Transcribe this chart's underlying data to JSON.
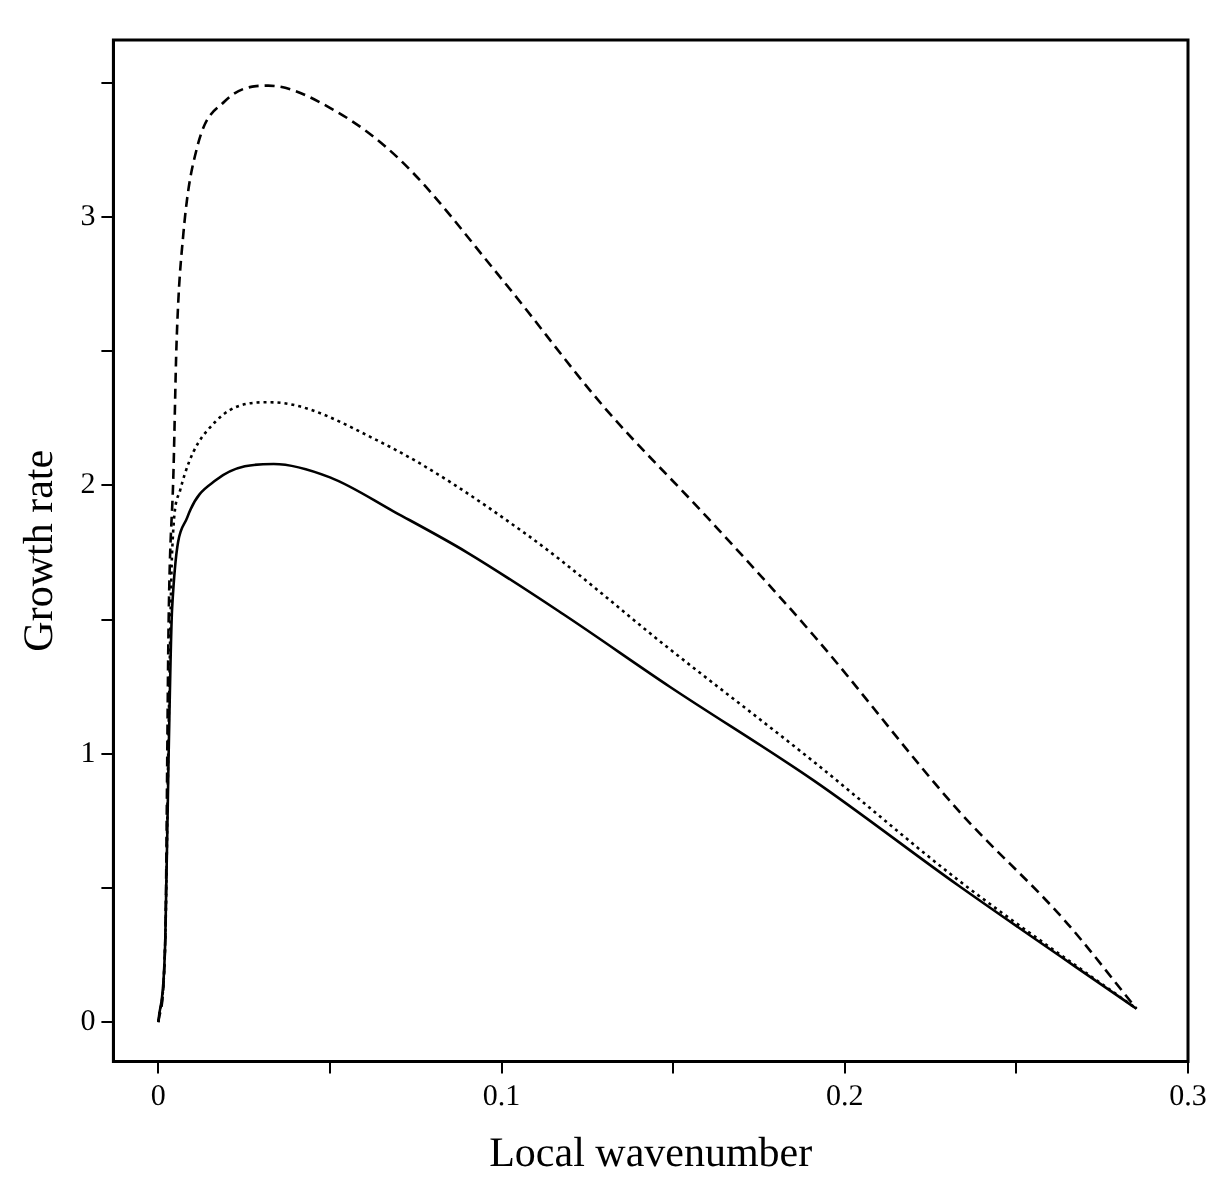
{
  "chart_data": {
    "type": "line",
    "xlabel": "Local wavenumber",
    "ylabel": "Growth rate",
    "xlim": [
      -0.0131,
      0.3
    ],
    "ylim": [
      -0.147,
      3.66
    ],
    "xticks": [
      0,
      {
        "value": 0.05,
        "label": null
      },
      0.1,
      {
        "value": 0.15,
        "label": null
      },
      0.2,
      {
        "value": 0.25,
        "label": null
      },
      0.3
    ],
    "yticks": [
      0,
      {
        "value": 0.5,
        "label": null
      },
      1,
      {
        "value": 1.5,
        "label": null
      },
      2,
      {
        "value": 2.5,
        "label": null
      },
      3,
      {
        "value": 3.5,
        "label": null
      }
    ],
    "grid": false,
    "legend": false,
    "marker": "none",
    "series": [
      {
        "color": "#000000",
        "line_style": "solid",
        "x": [
          0,
          0.002,
          0.003,
          0.004,
          0.0084,
          0.0168,
          0.0336,
          0.05,
          0.069,
          0.09,
          0.118,
          0.149,
          0.191,
          0.233,
          0.285
        ],
        "values": [
          0,
          0.3,
          1.0,
          1.54,
          1.88,
          2.02,
          2.08,
          2.03,
          1.9,
          1.75,
          1.52,
          1.25,
          0.9,
          0.51,
          0.05
        ]
      },
      {
        "color": "#000000",
        "line_style": "dotted",
        "x": [
          0,
          0.002,
          0.003,
          0.004,
          0.0063,
          0.0168,
          0.0326,
          0.065,
          0.107,
          0.149,
          0.191,
          0.233,
          0.285
        ],
        "values": [
          0,
          0.3,
          1.1,
          1.75,
          1.98,
          2.24,
          2.31,
          2.16,
          1.82,
          1.39,
          0.97,
          0.53,
          0.05
        ]
      },
      {
        "color": "#000000",
        "line_style": "dashed",
        "x": [
          0,
          0.002,
          0.003,
          0.0044,
          0.0053,
          0.0073,
          0.0113,
          0.0192,
          0.032,
          0.051,
          0.0707,
          0.1,
          0.13,
          0.16,
          0.191,
          0.233,
          0.264,
          0.285
        ],
        "values": [
          0,
          0.3,
          1.5,
          2.05,
          2.53,
          2.94,
          3.26,
          3.43,
          3.49,
          3.4,
          3.21,
          2.77,
          2.29,
          1.88,
          1.44,
          0.79,
          0.38,
          0.05
        ]
      }
    ]
  }
}
